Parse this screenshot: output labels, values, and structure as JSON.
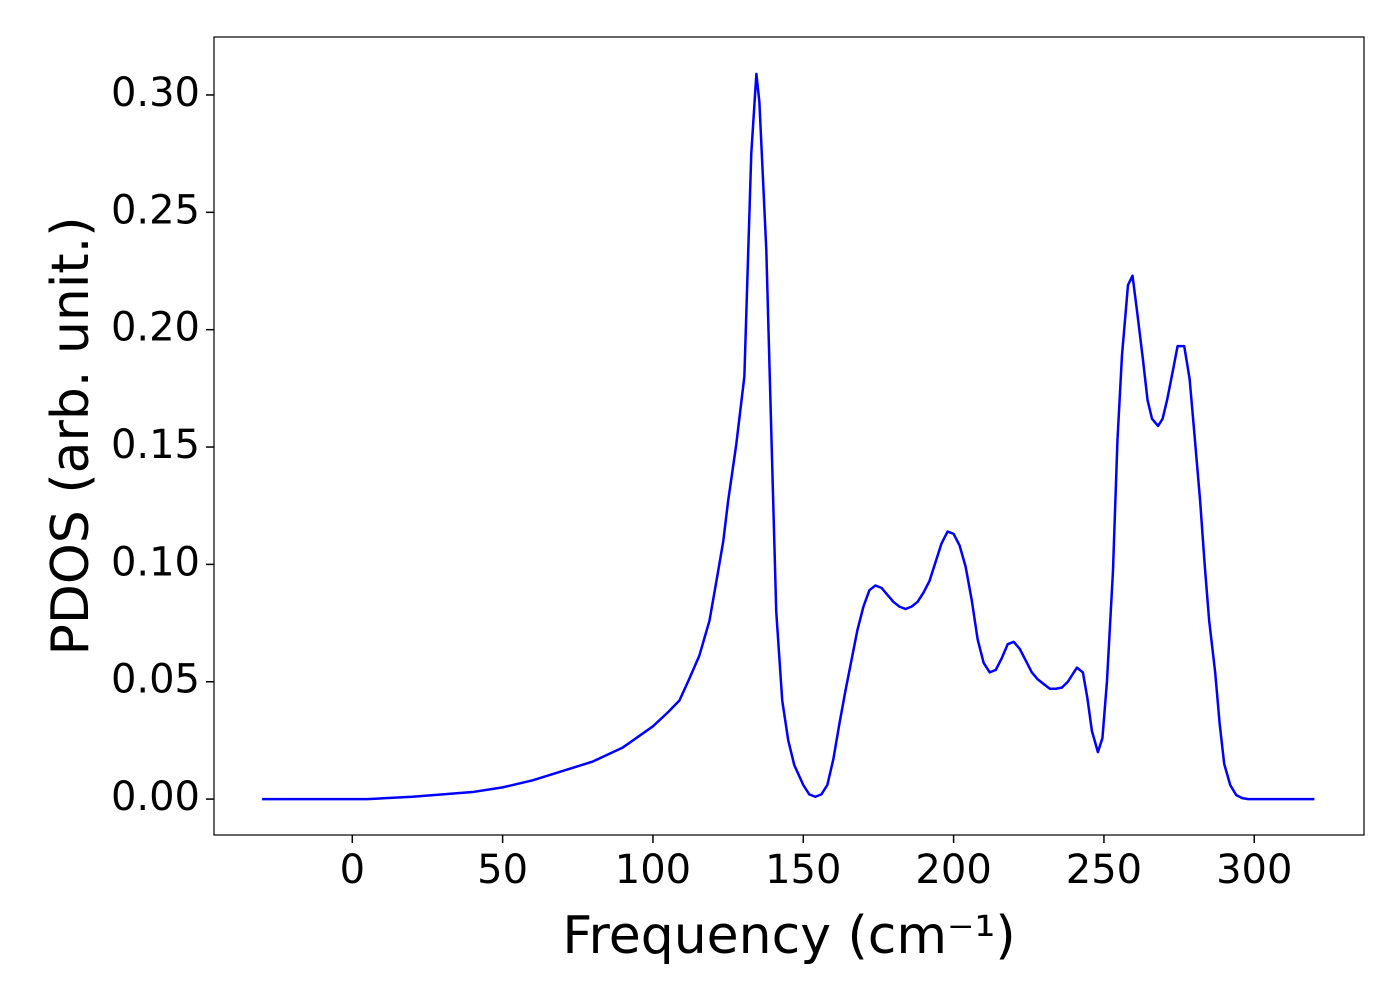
{
  "chart_data": {
    "type": "line",
    "xlabel": "Frequency (cm⁻¹)",
    "ylabel": "PDOS (arb. unit.)",
    "xlim": [
      -46,
      336.5
    ],
    "xticks": [
      0,
      50,
      100,
      150,
      200,
      250,
      300
    ],
    "ylim": [
      -0.0153,
      0.3247
    ],
    "yticks": [
      {
        "value": 0,
        "label": "0.00"
      },
      {
        "value": 0.05,
        "label": "0.05"
      },
      {
        "value": 0.1,
        "label": "0.10"
      },
      {
        "value": 0.15,
        "label": "0.15"
      },
      {
        "value": 0.2,
        "label": "0.20"
      },
      {
        "value": 0.25,
        "label": "0.25"
      },
      {
        "value": 0.3,
        "label": "0.30"
      }
    ],
    "grid": false,
    "x": [
      -30,
      0,
      5,
      20,
      30,
      40,
      50,
      60,
      70,
      80,
      90,
      100,
      105,
      108.8,
      112,
      115.4,
      118.8,
      121.4,
      123.4,
      125,
      127.7,
      130.4,
      132.7,
      134.4,
      135.4,
      137.7,
      141,
      143,
      145,
      147,
      150,
      152,
      154,
      156,
      158,
      160,
      162,
      164,
      166,
      168,
      170,
      172,
      174,
      176,
      178,
      180,
      182,
      184,
      186,
      188,
      190,
      192,
      194,
      196,
      198,
      200,
      202,
      204,
      206,
      208,
      210,
      212,
      214,
      216,
      218,
      220,
      222,
      224,
      226,
      228,
      230,
      232,
      234,
      236,
      238,
      240,
      241,
      243,
      244.5,
      246,
      248,
      249.5,
      251,
      253,
      254.5,
      256,
      258,
      259.5,
      261,
      263,
      264.5,
      266,
      268,
      269.5,
      271,
      273,
      274.5,
      276.7,
      278.5,
      280,
      282,
      283.5,
      285,
      287,
      288.5,
      290,
      292,
      294,
      296,
      298,
      320
    ],
    "series": [
      {
        "name": "PDOS",
        "color": "#0000ff",
        "values": [
          0,
          0,
          0,
          0.001,
          0.002,
          0.003,
          0.005,
          0.008,
          0.012,
          0.016,
          0.022,
          0.031,
          0.037,
          0.042,
          0.051,
          0.061,
          0.076,
          0.095,
          0.11,
          0.127,
          0.151,
          0.18,
          0.275,
          0.309,
          0.297,
          0.234,
          0.08,
          0.042,
          0.025,
          0.0145,
          0.006,
          0.002,
          0.001,
          0.002,
          0.006,
          0.017,
          0.032,
          0.046,
          0.059,
          0.072,
          0.082,
          0.089,
          0.091,
          0.09,
          0.087,
          0.084,
          0.082,
          0.081,
          0.082,
          0.084,
          0.088,
          0.093,
          0.101,
          0.109,
          0.114,
          0.113,
          0.108,
          0.099,
          0.085,
          0.068,
          0.058,
          0.054,
          0.055,
          0.06,
          0.066,
          0.067,
          0.064,
          0.059,
          0.054,
          0.051,
          0.049,
          0.047,
          0.047,
          0.0475,
          0.05,
          0.054,
          0.056,
          0.054,
          0.043,
          0.029,
          0.02,
          0.026,
          0.05,
          0.097,
          0.153,
          0.189,
          0.219,
          0.223,
          0.208,
          0.187,
          0.17,
          0.162,
          0.159,
          0.162,
          0.17,
          0.183,
          0.193,
          0.193,
          0.179,
          0.157,
          0.127,
          0.1,
          0.076,
          0.054,
          0.032,
          0.015,
          0.006,
          0.0017,
          0.0004,
          0,
          0
        ]
      }
    ]
  }
}
